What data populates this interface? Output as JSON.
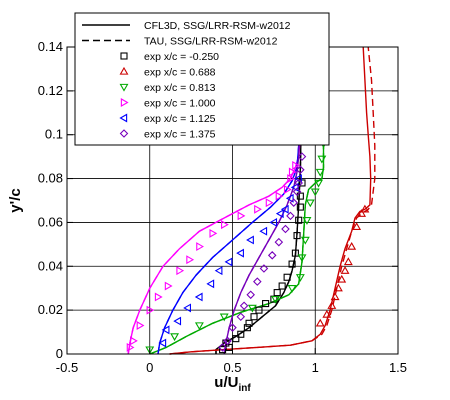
{
  "chart_data": {
    "type": "line",
    "xlabel": "u/U",
    "xlabel_sub": "inf",
    "ylabel": "y'/c",
    "xlim": [
      -0.5,
      1.5
    ],
    "ylim": [
      0,
      0.14
    ],
    "xticks": [
      "-0.5",
      "0",
      "0.5",
      "1",
      "1.5"
    ],
    "yticks": [
      "0",
      "0.02",
      "0.04",
      "0.06",
      "0.08",
      "0.1",
      "0.12",
      "0.14"
    ],
    "grid": "on",
    "legend_position": "top-left",
    "colors": {
      "black": "#000000",
      "red": "#cc0000",
      "green": "#00aa00",
      "magenta": "#ff00ff",
      "blue": "#0000ff",
      "purple": "#7700bb"
    },
    "legend": [
      {
        "label": "CFL3D, SSG/LRR-RSM-w2012",
        "kind": "solid-line",
        "color": "black"
      },
      {
        "label": "TAU, SSG/LRR-RSM-w2012",
        "kind": "dashed-line",
        "color": "black"
      },
      {
        "label": "exp x/c = -0.250",
        "kind": "square",
        "color": "black"
      },
      {
        "label": "exp x/c = 0.688",
        "kind": "triangle-up",
        "color": "red"
      },
      {
        "label": "exp x/c = 0.813",
        "kind": "triangle-down",
        "color": "green"
      },
      {
        "label": "exp x/c = 1.000",
        "kind": "triangle-right",
        "color": "magenta"
      },
      {
        "label": "exp x/c = 1.125",
        "kind": "triangle-left",
        "color": "blue"
      },
      {
        "label": "exp x/c = 1.375",
        "kind": "diamond",
        "color": "purple"
      }
    ],
    "series": [
      {
        "name": "x/c = -0.250",
        "color": "black",
        "cfd": [
          [
            0.4,
            0.0
          ],
          [
            0.4,
            0.002
          ],
          [
            0.45,
            0.005
          ],
          [
            0.52,
            0.008
          ],
          [
            0.6,
            0.012
          ],
          [
            0.68,
            0.017
          ],
          [
            0.76,
            0.022
          ],
          [
            0.81,
            0.028
          ],
          [
            0.84,
            0.033
          ],
          [
            0.86,
            0.038
          ],
          [
            0.88,
            0.045
          ],
          [
            0.89,
            0.055
          ],
          [
            0.9,
            0.068
          ],
          [
            0.91,
            0.085
          ],
          [
            0.915,
            0.105
          ],
          [
            0.92,
            0.14
          ]
        ],
        "exp": [
          [
            0.44,
            0.002
          ],
          [
            0.48,
            0.003
          ],
          [
            0.46,
            0.005
          ],
          [
            0.52,
            0.007
          ],
          [
            0.55,
            0.009
          ],
          [
            0.59,
            0.012
          ],
          [
            0.6,
            0.014
          ],
          [
            0.63,
            0.017
          ],
          [
            0.66,
            0.02
          ],
          [
            0.7,
            0.023
          ],
          [
            0.75,
            0.025
          ],
          [
            0.77,
            0.028
          ],
          [
            0.8,
            0.031
          ],
          [
            0.83,
            0.035
          ],
          [
            0.86,
            0.041
          ],
          [
            0.88,
            0.046
          ],
          [
            0.89,
            0.054
          ],
          [
            0.9,
            0.061
          ],
          [
            0.91,
            0.067
          ],
          [
            0.91,
            0.072
          ],
          [
            0.92,
            0.078
          ]
        ]
      },
      {
        "name": "x/c = 0.688",
        "color": "red",
        "cfd": [
          [
            0.12,
            0.0
          ],
          [
            0.25,
            0.001
          ],
          [
            0.45,
            0.002
          ],
          [
            0.65,
            0.003
          ],
          [
            0.85,
            0.004
          ],
          [
            0.98,
            0.006
          ],
          [
            1.03,
            0.009
          ],
          [
            1.06,
            0.013
          ],
          [
            1.09,
            0.02
          ],
          [
            1.12,
            0.03
          ],
          [
            1.15,
            0.04
          ],
          [
            1.18,
            0.048
          ],
          [
            1.22,
            0.056
          ],
          [
            1.24,
            0.062
          ],
          [
            1.27,
            0.065
          ],
          [
            1.3,
            0.066
          ],
          [
            1.33,
            0.068
          ],
          [
            1.335,
            0.08
          ],
          [
            1.33,
            0.09
          ],
          [
            1.32,
            0.1
          ],
          [
            1.31,
            0.11
          ],
          [
            1.3,
            0.125
          ],
          [
            1.29,
            0.14
          ]
        ],
        "cfd_tau": [
          [
            0.12,
            0.0
          ],
          [
            0.25,
            0.001
          ],
          [
            0.45,
            0.002
          ],
          [
            0.65,
            0.003
          ],
          [
            0.85,
            0.004
          ],
          [
            0.98,
            0.006
          ],
          [
            1.04,
            0.009
          ],
          [
            1.07,
            0.013
          ],
          [
            1.1,
            0.02
          ],
          [
            1.13,
            0.03
          ],
          [
            1.16,
            0.04
          ],
          [
            1.19,
            0.048
          ],
          [
            1.22,
            0.056
          ],
          [
            1.25,
            0.062
          ],
          [
            1.28,
            0.064
          ],
          [
            1.32,
            0.066
          ],
          [
            1.34,
            0.068
          ],
          [
            1.36,
            0.08
          ],
          [
            1.36,
            0.095
          ],
          [
            1.35,
            0.11
          ],
          [
            1.34,
            0.125
          ],
          [
            1.32,
            0.14
          ]
        ],
        "exp": [
          [
            1.03,
            0.014
          ],
          [
            1.07,
            0.018
          ],
          [
            1.1,
            0.022
          ],
          [
            1.12,
            0.026
          ],
          [
            1.14,
            0.03
          ],
          [
            1.16,
            0.034
          ],
          [
            1.18,
            0.038
          ],
          [
            1.2,
            0.042
          ],
          [
            1.22,
            0.049
          ],
          [
            1.25,
            0.058
          ],
          [
            1.28,
            0.064
          ],
          [
            1.3,
            0.066
          ]
        ]
      },
      {
        "name": "x/c = 0.813",
        "color": "green",
        "cfd": [
          [
            0.0,
            0.0
          ],
          [
            0.1,
            0.003
          ],
          [
            0.22,
            0.008
          ],
          [
            0.38,
            0.014
          ],
          [
            0.55,
            0.019
          ],
          [
            0.72,
            0.023
          ],
          [
            0.84,
            0.027
          ],
          [
            0.9,
            0.032
          ],
          [
            0.92,
            0.042
          ],
          [
            0.93,
            0.055
          ],
          [
            0.94,
            0.068
          ],
          [
            0.96,
            0.075
          ],
          [
            1.0,
            0.078
          ],
          [
            1.04,
            0.08
          ],
          [
            1.05,
            0.085
          ],
          [
            1.05,
            0.095
          ],
          [
            1.05,
            0.11
          ],
          [
            1.04,
            0.125
          ],
          [
            1.03,
            0.14
          ]
        ],
        "exp": [
          [
            0.0,
            0.002
          ],
          [
            0.15,
            0.008
          ],
          [
            0.3,
            0.013
          ],
          [
            0.45,
            0.017
          ],
          [
            0.62,
            0.021
          ],
          [
            0.76,
            0.025
          ],
          [
            0.86,
            0.03
          ],
          [
            0.91,
            0.035
          ],
          [
            0.92,
            0.044
          ],
          [
            0.94,
            0.052
          ],
          [
            0.95,
            0.061
          ],
          [
            0.97,
            0.069
          ],
          [
            1.0,
            0.074
          ],
          [
            1.02,
            0.078
          ],
          [
            1.03,
            0.083
          ],
          [
            1.04,
            0.089
          ],
          [
            1.05,
            0.096
          ]
        ]
      },
      {
        "name": "x/c = 1.000",
        "color": "magenta",
        "cfd": [
          [
            -0.13,
            0.0
          ],
          [
            -0.12,
            0.005
          ],
          [
            -0.1,
            0.012
          ],
          [
            -0.06,
            0.02
          ],
          [
            0.0,
            0.03
          ],
          [
            0.08,
            0.04
          ],
          [
            0.18,
            0.048
          ],
          [
            0.3,
            0.056
          ],
          [
            0.45,
            0.062
          ],
          [
            0.6,
            0.068
          ],
          [
            0.72,
            0.072
          ],
          [
            0.8,
            0.076
          ],
          [
            0.85,
            0.08
          ],
          [
            0.88,
            0.085
          ],
          [
            0.9,
            0.09
          ],
          [
            0.91,
            0.1
          ],
          [
            0.92,
            0.14
          ]
        ],
        "exp": [
          [
            -0.12,
            0.003
          ],
          [
            -0.1,
            0.006
          ],
          [
            -0.06,
            0.013
          ],
          [
            0.0,
            0.02
          ],
          [
            0.05,
            0.026
          ],
          [
            0.11,
            0.031
          ],
          [
            0.18,
            0.038
          ],
          [
            0.24,
            0.043
          ],
          [
            0.3,
            0.049
          ],
          [
            0.38,
            0.055
          ],
          [
            0.45,
            0.059
          ],
          [
            0.55,
            0.063
          ],
          [
            0.65,
            0.066
          ],
          [
            0.72,
            0.069
          ],
          [
            0.78,
            0.072
          ],
          [
            0.83,
            0.075
          ],
          [
            0.85,
            0.08
          ],
          [
            0.86,
            0.083
          ],
          [
            0.88,
            0.086
          ]
        ]
      },
      {
        "name": "x/c = 1.125",
        "color": "blue",
        "cfd": [
          [
            0.05,
            0.0
          ],
          [
            0.06,
            0.005
          ],
          [
            0.09,
            0.012
          ],
          [
            0.14,
            0.02
          ],
          [
            0.2,
            0.028
          ],
          [
            0.28,
            0.036
          ],
          [
            0.38,
            0.044
          ],
          [
            0.5,
            0.052
          ],
          [
            0.62,
            0.06
          ],
          [
            0.73,
            0.067
          ],
          [
            0.81,
            0.073
          ],
          [
            0.86,
            0.079
          ],
          [
            0.89,
            0.085
          ],
          [
            0.9,
            0.095
          ],
          [
            0.91,
            0.14
          ]
        ],
        "exp": [
          [
            0.08,
            0.005
          ],
          [
            0.1,
            0.011
          ],
          [
            0.17,
            0.015
          ],
          [
            0.23,
            0.021
          ],
          [
            0.3,
            0.026
          ],
          [
            0.37,
            0.032
          ],
          [
            0.42,
            0.038
          ],
          [
            0.48,
            0.042
          ],
          [
            0.55,
            0.046
          ],
          [
            0.61,
            0.052
          ],
          [
            0.69,
            0.056
          ],
          [
            0.75,
            0.06
          ],
          [
            0.79,
            0.064
          ],
          [
            0.82,
            0.066
          ],
          [
            0.85,
            0.071
          ],
          [
            0.88,
            0.076
          ],
          [
            0.9,
            0.08
          ]
        ]
      },
      {
        "name": "x/c = 1.375",
        "color": "purple",
        "cfd": [
          [
            0.45,
            0.0
          ],
          [
            0.46,
            0.005
          ],
          [
            0.48,
            0.012
          ],
          [
            0.51,
            0.02
          ],
          [
            0.55,
            0.028
          ],
          [
            0.6,
            0.036
          ],
          [
            0.66,
            0.044
          ],
          [
            0.72,
            0.052
          ],
          [
            0.78,
            0.06
          ],
          [
            0.83,
            0.068
          ],
          [
            0.87,
            0.076
          ],
          [
            0.89,
            0.083
          ],
          [
            0.9,
            0.09
          ],
          [
            0.905,
            0.1
          ],
          [
            0.91,
            0.14
          ]
        ],
        "exp": [
          [
            0.44,
            0.003
          ],
          [
            0.47,
            0.006
          ],
          [
            0.5,
            0.012
          ],
          [
            0.55,
            0.017
          ],
          [
            0.57,
            0.022
          ],
          [
            0.61,
            0.027
          ],
          [
            0.65,
            0.033
          ],
          [
            0.69,
            0.039
          ],
          [
            0.74,
            0.045
          ],
          [
            0.78,
            0.051
          ],
          [
            0.82,
            0.057
          ],
          [
            0.85,
            0.063
          ],
          [
            0.87,
            0.069
          ],
          [
            0.89,
            0.074
          ],
          [
            0.9,
            0.078
          ],
          [
            0.91,
            0.084
          ],
          [
            0.92,
            0.09
          ]
        ]
      }
    ]
  }
}
